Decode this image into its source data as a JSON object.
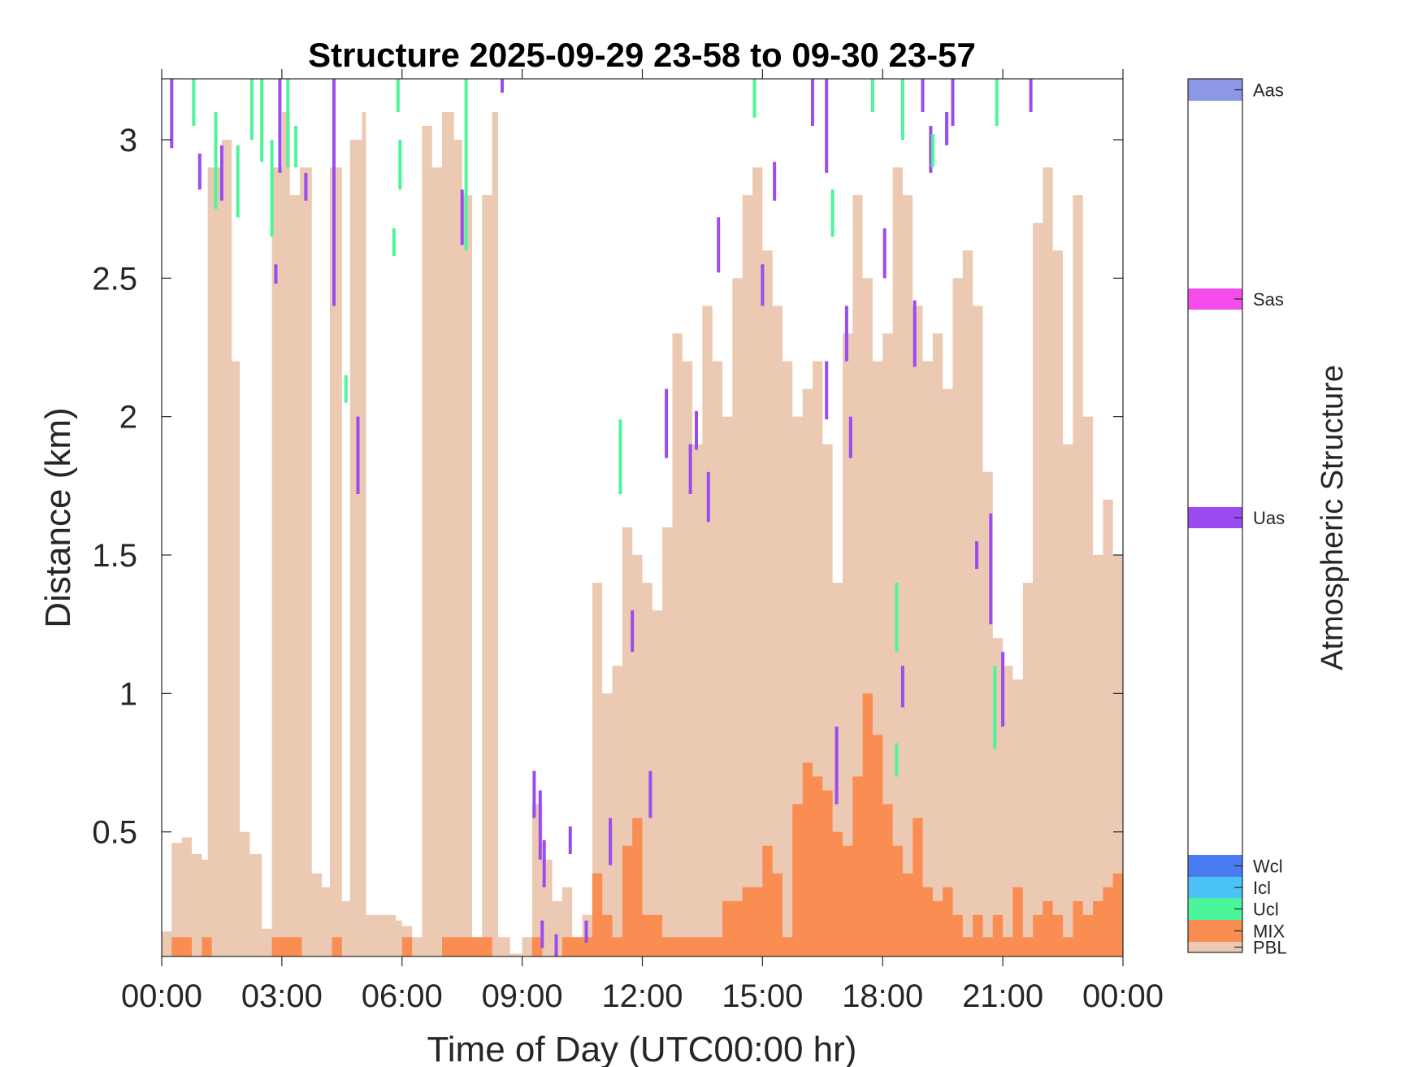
{
  "colors": {
    "PBL": "#ecc9b2",
    "MIX": "#f98d52",
    "Ucl": "#4cf59a",
    "Icl": "#4cc3f6",
    "Wcl": "#4a7bf2",
    "Uas": "#9b4cf0",
    "Sas": "#f54cec",
    "Aas": "#8c98e4"
  },
  "chart_data": {
    "type": "heatmap",
    "title": "Structure 2025-09-29 23-58 to 09-30 23-57",
    "xlabel": "Time of Day (UTC00:00 hr)",
    "ylabel": "Distance (km)",
    "xlim": [
      0,
      24
    ],
    "ylim": [
      0.05,
      3.22
    ],
    "x_ticks": [
      0,
      3,
      6,
      9,
      12,
      15,
      18,
      21,
      24
    ],
    "x_tick_labels": [
      "00:00",
      "03:00",
      "06:00",
      "09:00",
      "12:00",
      "15:00",
      "18:00",
      "21:00",
      "00:00"
    ],
    "y_ticks": [
      0.5,
      1,
      1.5,
      2,
      2.5,
      3
    ],
    "y_tick_labels": [
      "0.5",
      "1",
      "1.5",
      "2",
      "2.5",
      "3"
    ],
    "grid": false,
    "pbl_top_km": [
      [
        0.0,
        0.14
      ],
      [
        0.25,
        0.46
      ],
      [
        0.5,
        0.48
      ],
      [
        0.75,
        0.42
      ],
      [
        1.0,
        0.4
      ],
      [
        1.15,
        2.9
      ],
      [
        1.5,
        3.0
      ],
      [
        1.75,
        2.2
      ],
      [
        1.95,
        0.5
      ],
      [
        2.2,
        0.42
      ],
      [
        2.5,
        0.15
      ],
      [
        2.75,
        2.9
      ],
      [
        3.0,
        3.1
      ],
      [
        3.2,
        2.8
      ],
      [
        3.45,
        2.9
      ],
      [
        3.75,
        0.35
      ],
      [
        4.0,
        0.3
      ],
      [
        4.2,
        2.9
      ],
      [
        4.5,
        0.25
      ],
      [
        4.7,
        3.0
      ],
      [
        5.0,
        3.1
      ],
      [
        5.1,
        0.2
      ],
      [
        5.5,
        0.2
      ],
      [
        5.85,
        0.18
      ],
      [
        6.0,
        0.16
      ],
      [
        6.25,
        0.12
      ],
      [
        6.5,
        3.05
      ],
      [
        6.75,
        2.9
      ],
      [
        7.0,
        3.1
      ],
      [
        7.3,
        3.0
      ],
      [
        7.5,
        2.8
      ],
      [
        7.75,
        0.1
      ],
      [
        8.0,
        2.8
      ],
      [
        8.25,
        3.1
      ],
      [
        8.4,
        0.12
      ],
      [
        8.7,
        0.06
      ],
      [
        9.0,
        0.12
      ],
      [
        9.25,
        0.6
      ],
      [
        9.5,
        0.4
      ],
      [
        9.75,
        0.25
      ],
      [
        10.0,
        0.3
      ],
      [
        10.25,
        0.12
      ],
      [
        10.5,
        0.2
      ],
      [
        10.75,
        1.4
      ],
      [
        11.0,
        1.0
      ],
      [
        11.25,
        1.1
      ],
      [
        11.5,
        1.6
      ],
      [
        11.75,
        1.5
      ],
      [
        12.0,
        1.4
      ],
      [
        12.25,
        1.3
      ],
      [
        12.5,
        1.6
      ],
      [
        12.75,
        2.3
      ],
      [
        13.0,
        2.2
      ],
      [
        13.25,
        1.9
      ],
      [
        13.5,
        2.4
      ],
      [
        13.75,
        2.2
      ],
      [
        14.0,
        2.0
      ],
      [
        14.25,
        2.5
      ],
      [
        14.5,
        2.8
      ],
      [
        14.75,
        2.9
      ],
      [
        15.0,
        2.6
      ],
      [
        15.25,
        2.4
      ],
      [
        15.5,
        2.2
      ],
      [
        15.75,
        2.0
      ],
      [
        16.0,
        2.1
      ],
      [
        16.25,
        2.2
      ],
      [
        16.5,
        1.9
      ],
      [
        16.75,
        1.4
      ],
      [
        17.0,
        2.3
      ],
      [
        17.25,
        2.8
      ],
      [
        17.5,
        2.5
      ],
      [
        17.75,
        2.2
      ],
      [
        18.0,
        2.3
      ],
      [
        18.25,
        2.9
      ],
      [
        18.5,
        2.8
      ],
      [
        18.75,
        2.4
      ],
      [
        19.0,
        2.2
      ],
      [
        19.25,
        2.3
      ],
      [
        19.5,
        2.1
      ],
      [
        19.75,
        2.5
      ],
      [
        20.0,
        2.6
      ],
      [
        20.25,
        2.4
      ],
      [
        20.5,
        1.8
      ],
      [
        20.75,
        1.2
      ],
      [
        21.0,
        1.1
      ],
      [
        21.25,
        1.05
      ],
      [
        21.5,
        1.4
      ],
      [
        21.75,
        2.7
      ],
      [
        22.0,
        2.9
      ],
      [
        22.25,
        2.6
      ],
      [
        22.5,
        1.9
      ],
      [
        22.75,
        2.8
      ],
      [
        23.0,
        2.0
      ],
      [
        23.25,
        1.5
      ],
      [
        23.5,
        1.7
      ],
      [
        23.75,
        1.5
      ],
      [
        24.0,
        1.75
      ]
    ],
    "mix_top_km": [
      [
        0.0,
        0.0
      ],
      [
        0.25,
        0.12
      ],
      [
        0.5,
        0.12
      ],
      [
        0.75,
        0.0
      ],
      [
        1.0,
        0.12
      ],
      [
        1.25,
        0.0
      ],
      [
        2.75,
        0.12
      ],
      [
        3.25,
        0.12
      ],
      [
        3.5,
        0.0
      ],
      [
        4.25,
        0.12
      ],
      [
        4.5,
        0.0
      ],
      [
        6.0,
        0.12
      ],
      [
        6.25,
        0.0
      ],
      [
        7.0,
        0.12
      ],
      [
        7.5,
        0.12
      ],
      [
        8.0,
        0.12
      ],
      [
        8.25,
        0.0
      ],
      [
        9.25,
        0.12
      ],
      [
        9.5,
        0.0
      ],
      [
        10.0,
        0.12
      ],
      [
        10.75,
        0.35
      ],
      [
        11.0,
        0.2
      ],
      [
        11.25,
        0.12
      ],
      [
        11.5,
        0.45
      ],
      [
        11.75,
        0.55
      ],
      [
        12.0,
        0.2
      ],
      [
        12.5,
        0.12
      ],
      [
        13.0,
        0.12
      ],
      [
        13.5,
        0.12
      ],
      [
        14.0,
        0.25
      ],
      [
        14.5,
        0.3
      ],
      [
        15.0,
        0.45
      ],
      [
        15.25,
        0.35
      ],
      [
        15.5,
        0.12
      ],
      [
        15.75,
        0.6
      ],
      [
        16.0,
        0.75
      ],
      [
        16.25,
        0.7
      ],
      [
        16.5,
        0.65
      ],
      [
        16.75,
        0.5
      ],
      [
        17.0,
        0.45
      ],
      [
        17.25,
        0.7
      ],
      [
        17.5,
        1.0
      ],
      [
        17.75,
        0.85
      ],
      [
        18.0,
        0.6
      ],
      [
        18.25,
        0.45
      ],
      [
        18.5,
        0.35
      ],
      [
        18.75,
        0.55
      ],
      [
        19.0,
        0.3
      ],
      [
        19.25,
        0.25
      ],
      [
        19.5,
        0.3
      ],
      [
        19.75,
        0.2
      ],
      [
        20.0,
        0.12
      ],
      [
        20.25,
        0.2
      ],
      [
        20.5,
        0.12
      ],
      [
        20.75,
        0.2
      ],
      [
        21.0,
        0.12
      ],
      [
        21.25,
        0.3
      ],
      [
        21.5,
        0.12
      ],
      [
        21.75,
        0.2
      ],
      [
        22.0,
        0.25
      ],
      [
        22.25,
        0.2
      ],
      [
        22.5,
        0.12
      ],
      [
        22.75,
        0.25
      ],
      [
        23.0,
        0.2
      ],
      [
        23.25,
        0.25
      ],
      [
        23.5,
        0.3
      ],
      [
        23.75,
        0.35
      ],
      [
        24.0,
        0.35
      ]
    ],
    "segments": [
      {
        "class": "Uas",
        "t": 0.25,
        "y0": 2.97,
        "y1": 3.22
      },
      {
        "class": "Ucl",
        "t": 0.8,
        "y0": 3.05,
        "y1": 3.22
      },
      {
        "class": "Uas",
        "t": 0.95,
        "y0": 2.82,
        "y1": 2.95
      },
      {
        "class": "Ucl",
        "t": 1.35,
        "y0": 2.75,
        "y1": 3.1
      },
      {
        "class": "Uas",
        "t": 1.5,
        "y0": 2.78,
        "y1": 2.98
      },
      {
        "class": "Ucl",
        "t": 1.9,
        "y0": 2.72,
        "y1": 2.98
      },
      {
        "class": "Ucl",
        "t": 2.25,
        "y0": 3.0,
        "y1": 3.22
      },
      {
        "class": "Ucl",
        "t": 2.5,
        "y0": 2.92,
        "y1": 3.22
      },
      {
        "class": "Ucl",
        "t": 2.75,
        "y0": 2.65,
        "y1": 3.0
      },
      {
        "class": "Uas",
        "t": 2.85,
        "y0": 2.48,
        "y1": 2.55
      },
      {
        "class": "Uas",
        "t": 2.95,
        "y0": 2.88,
        "y1": 3.22
      },
      {
        "class": "Ucl",
        "t": 3.15,
        "y0": 2.9,
        "y1": 3.22
      },
      {
        "class": "Ucl",
        "t": 3.35,
        "y0": 2.9,
        "y1": 3.05
      },
      {
        "class": "Uas",
        "t": 3.6,
        "y0": 2.78,
        "y1": 2.88
      },
      {
        "class": "Uas",
        "t": 4.3,
        "y0": 2.4,
        "y1": 3.22
      },
      {
        "class": "Ucl",
        "t": 4.6,
        "y0": 2.05,
        "y1": 2.15
      },
      {
        "class": "Uas",
        "t": 4.9,
        "y0": 1.72,
        "y1": 2.0
      },
      {
        "class": "Ucl",
        "t": 5.9,
        "y0": 3.1,
        "y1": 3.22
      },
      {
        "class": "Ucl",
        "t": 5.95,
        "y0": 2.82,
        "y1": 3.0
      },
      {
        "class": "Ucl",
        "t": 5.8,
        "y0": 2.58,
        "y1": 2.68
      },
      {
        "class": "Uas",
        "t": 7.5,
        "y0": 2.62,
        "y1": 2.82
      },
      {
        "class": "Ucl",
        "t": 7.6,
        "y0": 2.6,
        "y1": 3.22
      },
      {
        "class": "Uas",
        "t": 8.5,
        "y0": 3.17,
        "y1": 3.22
      },
      {
        "class": "Uas",
        "t": 9.3,
        "y0": 0.55,
        "y1": 0.72
      },
      {
        "class": "Uas",
        "t": 9.45,
        "y0": 0.4,
        "y1": 0.65
      },
      {
        "class": "Uas",
        "t": 9.55,
        "y0": 0.3,
        "y1": 0.47
      },
      {
        "class": "Uas",
        "t": 9.5,
        "y0": 0.08,
        "y1": 0.18
      },
      {
        "class": "Uas",
        "t": 9.85,
        "y0": 0.05,
        "y1": 0.13
      },
      {
        "class": "Uas",
        "t": 10.2,
        "y0": 0.42,
        "y1": 0.52
      },
      {
        "class": "Uas",
        "t": 10.6,
        "y0": 0.1,
        "y1": 0.18
      },
      {
        "class": "Ucl",
        "t": 11.45,
        "y0": 1.72,
        "y1": 1.99
      },
      {
        "class": "Uas",
        "t": 11.2,
        "y0": 0.38,
        "y1": 0.55
      },
      {
        "class": "Uas",
        "t": 11.75,
        "y0": 1.15,
        "y1": 1.3
      },
      {
        "class": "Uas",
        "t": 12.2,
        "y0": 0.55,
        "y1": 0.72
      },
      {
        "class": "Uas",
        "t": 12.6,
        "y0": 1.85,
        "y1": 2.1
      },
      {
        "class": "Uas",
        "t": 13.2,
        "y0": 1.72,
        "y1": 1.9
      },
      {
        "class": "Uas",
        "t": 13.35,
        "y0": 1.88,
        "y1": 2.02
      },
      {
        "class": "Uas",
        "t": 13.65,
        "y0": 1.62,
        "y1": 1.8
      },
      {
        "class": "Uas",
        "t": 13.9,
        "y0": 2.52,
        "y1": 2.72
      },
      {
        "class": "Uas",
        "t": 15.0,
        "y0": 2.4,
        "y1": 2.55
      },
      {
        "class": "Ucl",
        "t": 14.8,
        "y0": 3.08,
        "y1": 3.22
      },
      {
        "class": "Uas",
        "t": 15.3,
        "y0": 2.78,
        "y1": 2.92
      },
      {
        "class": "Uas",
        "t": 16.25,
        "y0": 3.05,
        "y1": 3.22
      },
      {
        "class": "Uas",
        "t": 16.6,
        "y0": 2.88,
        "y1": 3.22
      },
      {
        "class": "Ucl",
        "t": 16.75,
        "y0": 2.65,
        "y1": 2.82
      },
      {
        "class": "Uas",
        "t": 16.6,
        "y0": 1.99,
        "y1": 2.2
      },
      {
        "class": "Uas",
        "t": 17.1,
        "y0": 2.2,
        "y1": 2.4
      },
      {
        "class": "Uas",
        "t": 17.2,
        "y0": 1.85,
        "y1": 2.0
      },
      {
        "class": "Uas",
        "t": 16.85,
        "y0": 0.6,
        "y1": 0.88
      },
      {
        "class": "Ucl",
        "t": 17.75,
        "y0": 3.1,
        "y1": 3.22
      },
      {
        "class": "Uas",
        "t": 18.05,
        "y0": 2.5,
        "y1": 2.68
      },
      {
        "class": "Ucl",
        "t": 18.35,
        "y0": 1.15,
        "y1": 1.4
      },
      {
        "class": "Ucl",
        "t": 18.35,
        "y0": 0.7,
        "y1": 0.82
      },
      {
        "class": "Uas",
        "t": 18.5,
        "y0": 0.95,
        "y1": 1.1
      },
      {
        "class": "Ucl",
        "t": 18.5,
        "y0": 3.0,
        "y1": 3.22
      },
      {
        "class": "Uas",
        "t": 18.8,
        "y0": 2.18,
        "y1": 2.42
      },
      {
        "class": "Uas",
        "t": 19.0,
        "y0": 3.1,
        "y1": 3.22
      },
      {
        "class": "Uas",
        "t": 19.2,
        "y0": 2.88,
        "y1": 3.05
      },
      {
        "class": "Ucl",
        "t": 19.25,
        "y0": 2.9,
        "y1": 3.02
      },
      {
        "class": "Uas",
        "t": 19.6,
        "y0": 2.98,
        "y1": 3.1
      },
      {
        "class": "Uas",
        "t": 19.75,
        "y0": 3.05,
        "y1": 3.22
      },
      {
        "class": "Uas",
        "t": 20.35,
        "y0": 1.45,
        "y1": 1.55
      },
      {
        "class": "Uas",
        "t": 20.7,
        "y0": 1.25,
        "y1": 1.65
      },
      {
        "class": "Ucl",
        "t": 20.8,
        "y0": 0.8,
        "y1": 1.1
      },
      {
        "class": "Uas",
        "t": 21.0,
        "y0": 0.88,
        "y1": 1.15
      },
      {
        "class": "Ucl",
        "t": 20.85,
        "y0": 3.05,
        "y1": 3.22
      },
      {
        "class": "Uas",
        "t": 21.7,
        "y0": 3.1,
        "y1": 3.22
      }
    ]
  },
  "colorbar": {
    "title": "Atmospheric Structure",
    "labels": [
      "Aas",
      "Sas",
      "Uas",
      "Wcl",
      "Icl",
      "Ucl",
      "MIX",
      "PBL"
    ]
  }
}
